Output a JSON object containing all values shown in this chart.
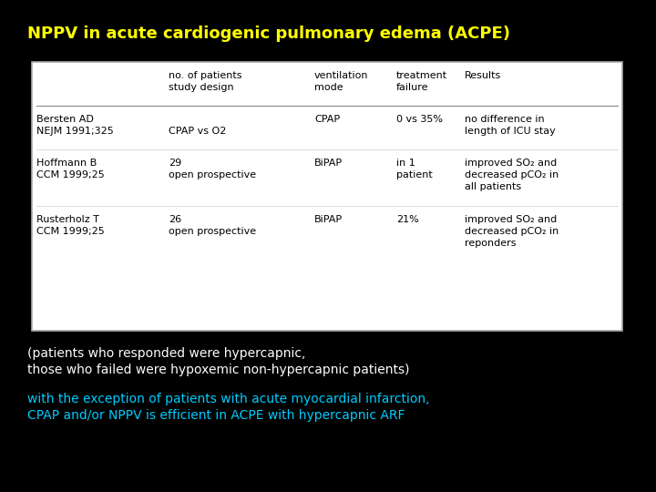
{
  "background_color": "#000000",
  "title": "NPPV in acute cardiogenic pulmonary edema (ACPE)",
  "title_color": "#FFFF00",
  "title_fontsize": 13,
  "table_bg": "#ffffff",
  "header_row": [
    "",
    "no. of patients\nstudy design",
    "ventilation\nmode",
    "treatment\nfailure",
    "Results"
  ],
  "rows": [
    {
      "col0_line1": "Bersten AD",
      "col0_line2": "NEJM 1991;325",
      "col1_line1": "",
      "col1_line2": "CPAP vs O2",
      "col2": "CPAP",
      "col3": "0 vs 35%",
      "col4_line1": "no difference in",
      "col4_line2": "length of ICU stay",
      "col4_line3": ""
    },
    {
      "col0_line1": "Hoffmann B",
      "col0_line2": "CCM 1999;25",
      "col1_line1": "29",
      "col1_line2": "open prospective",
      "col2": "BiPAP",
      "col3_line1": "in 1",
      "col3_line2": "patient",
      "col4_line1": "improved SO₂ and",
      "col4_line2": "decreased pCO₂ in",
      "col4_line3": "all patients"
    },
    {
      "col0_line1": "Rusterholz T",
      "col0_line2": "CCM 1999;25",
      "col1_line1": "26",
      "col1_line2": "open prospective",
      "col2": "BiPAP",
      "col3_line1": "21%",
      "col3_line2": "",
      "col4_line1": "improved SO₂ and",
      "col4_line2": "decreased pCO₂ in",
      "col4_line3": "reponders"
    }
  ],
  "footnote1_line1": "(patients who responded were hypercapnic,",
  "footnote1_line2": "those who failed were hypoxemic non-hypercapnic patients)",
  "footnote1_color": "#ffffff",
  "footnote2_line1": "with the exception of patients with acute myocardial infarction,",
  "footnote2_line2": "CPAP and/or NPPV is efficient in ACPE with hypercapnic ARF",
  "footnote2_color": "#00CCFF",
  "footnote_fontsize": 10,
  "cell_fontsize": 8,
  "header_fontsize": 8
}
